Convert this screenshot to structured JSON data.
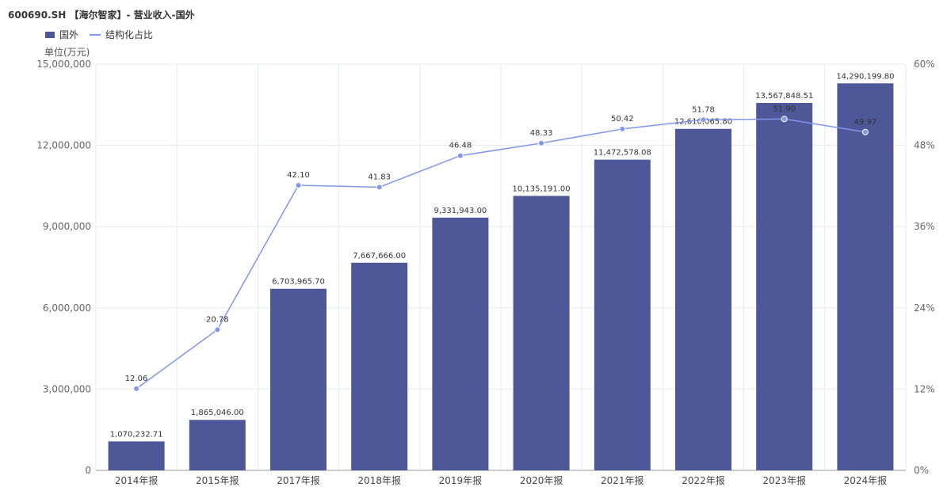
{
  "title": "600690.SH 【海尔智家】- 营业收入-国外",
  "unit_label": "单位(万元)",
  "colors": {
    "bar": "#4e5797",
    "line": "#7f97ee",
    "grid": "#e6e9ef"
  },
  "chart_data": {
    "type": "bar",
    "categories": [
      "2014年报",
      "2015年报",
      "2017年报",
      "2018年报",
      "2019年报",
      "2020年报",
      "2021年报",
      "2022年报",
      "2023年报",
      "2024年报"
    ],
    "series": [
      {
        "name": "国外",
        "type": "bar",
        "axis": "left",
        "values": [
          1070232.71,
          1865046.0,
          6703965.7,
          7667666.0,
          9331943.0,
          10135191.0,
          11472578.08,
          12610065.8,
          13567848.51,
          14290199.8
        ],
        "labels": [
          "1,070,232.71",
          "1,865,046.00",
          "6,703,965.70",
          "7,667,666.00",
          "9,331,943.00",
          "10,135,191.00",
          "11,472,578.08",
          "12,610,065.80",
          "13,567,848.51",
          "14,290,199.80"
        ]
      },
      {
        "name": "结构化占比",
        "type": "line",
        "axis": "right",
        "values": [
          12.06,
          20.78,
          42.1,
          41.83,
          46.48,
          48.33,
          50.42,
          51.78,
          51.9,
          49.97
        ],
        "labels": [
          "12.06",
          "20.78",
          "42.10",
          "41.83",
          "46.48",
          "48.33",
          "50.42",
          "51.78",
          "51.90",
          "49.97"
        ]
      }
    ],
    "y_left": {
      "min": 0,
      "max": 15000000,
      "ticks": [
        "0",
        "3,000,000",
        "6,000,000",
        "9,000,000",
        "12,000,000",
        "15,000,000"
      ]
    },
    "y_right": {
      "min": 0,
      "max": 60,
      "ticks": [
        "0%",
        "12%",
        "24%",
        "36%",
        "48%",
        "60%"
      ]
    },
    "grid": true,
    "legend_position": "top-left"
  }
}
